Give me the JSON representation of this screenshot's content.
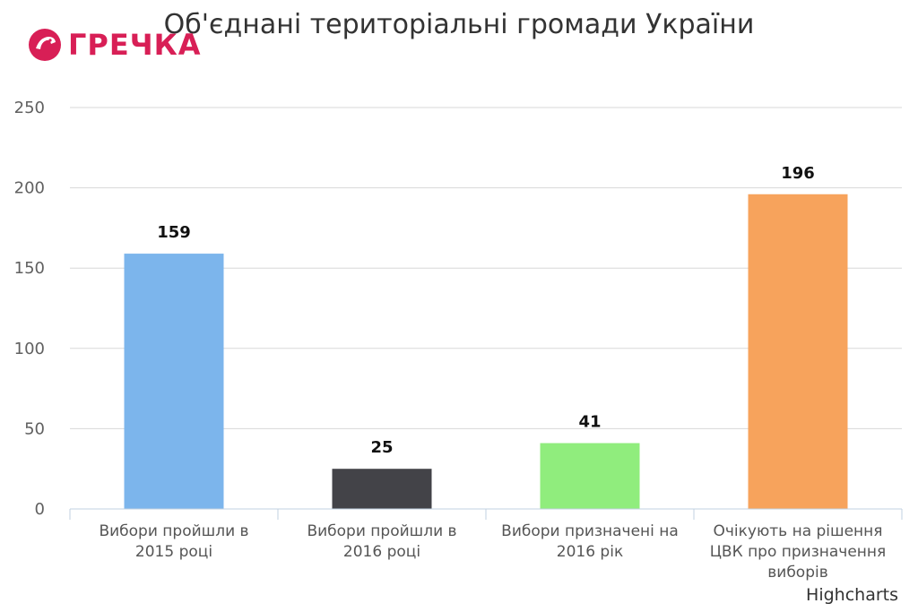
{
  "logo": {
    "text": "ГРЕЧКА"
  },
  "credits": "Highcharts",
  "colors": {
    "bar_blue": "#7cb5ec",
    "bar_dark": "#434348",
    "bar_green": "#90ed7d",
    "bar_orange": "#f7a35c",
    "logo_red": "#d81f56"
  },
  "chart_data": {
    "type": "bar",
    "title": "Об'єднані територіальні громади України",
    "categories": [
      [
        "Вибори пройшли в",
        "2015 році"
      ],
      [
        "Вибори пройшли в",
        "2016 році"
      ],
      [
        "Вибори призначені на",
        "2016 рік"
      ],
      [
        "Очікують на рішення",
        "ЦВК про призначення",
        "виборів"
      ]
    ],
    "values": [
      159,
      25,
      41,
      196
    ],
    "bar_colors": [
      "#7cb5ec",
      "#434348",
      "#90ed7d",
      "#f7a35c"
    ],
    "ylim": [
      0,
      250
    ],
    "yticks": [
      0,
      50,
      100,
      150,
      200,
      250
    ],
    "grid": true,
    "xlabel": "",
    "ylabel": ""
  }
}
